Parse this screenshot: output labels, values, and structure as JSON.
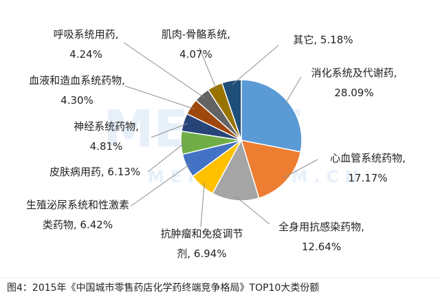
{
  "chart_data": {
    "type": "pie",
    "title": "图4：2015年《中国城市零售药店化学药终端竞争格局》TOP10大类份额",
    "watermark": [
      "MENET",
      "MENET.COM.CN"
    ],
    "labels": [
      "消化系统及代谢药, 28.09%",
      "心血管系统药物, 17.17%",
      "全身用抗感染药物, 12.64%",
      "抗肿瘤和免疫调节剂, 6.94%",
      "生殖泌尿系统和性激素类药物, 6.42%",
      "皮肤病用药, 6.13%",
      "神经系统药物, 4.81%",
      "血液和造血系统药物, 4.30%",
      "呼吸系统用药, 4.24%",
      "肌肉-骨骼系统, 4.07%",
      "其它, 5.18%"
    ],
    "values": [
      28.09,
      17.17,
      12.64,
      6.94,
      6.42,
      6.13,
      4.81,
      4.3,
      4.24,
      4.07,
      5.18
    ],
    "colors": [
      "#5b9bd5",
      "#ed7d31",
      "#a5a5a5",
      "#ffc000",
      "#4472c4",
      "#70ad47",
      "#264478",
      "#9e480e",
      "#636363",
      "#997300",
      "#1f4e79"
    ]
  }
}
